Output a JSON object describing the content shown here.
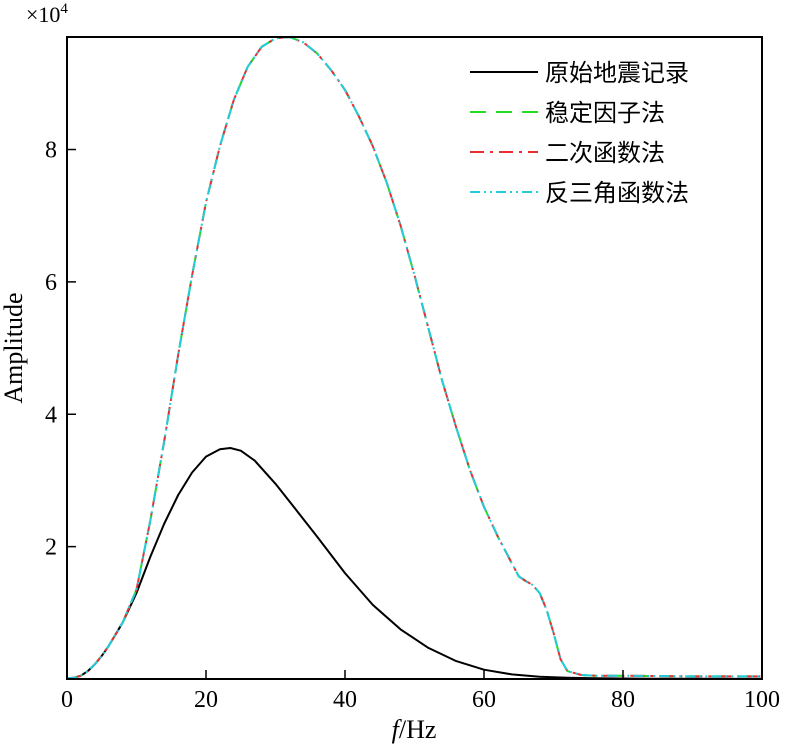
{
  "chart_data": {
    "type": "line",
    "title": "",
    "xlabel_italic": "f",
    "xlabel_rest": "/Hz",
    "ylabel": "Amplitude",
    "y_multiplier": "×10",
    "y_multiplier_exp": "4",
    "xlim": [
      0,
      100
    ],
    "ylim": [
      0,
      9.7
    ],
    "xticks": [
      0,
      20,
      40,
      60,
      80,
      100
    ],
    "yticks": [
      2,
      4,
      6,
      8
    ],
    "legend_position": "top-right",
    "grid": false,
    "series": [
      {
        "name": "原始地震记录",
        "color": "#000000",
        "dash": "solid",
        "x": [
          0,
          1,
          2,
          3,
          4,
          5,
          6,
          8,
          10,
          12,
          14,
          16,
          18,
          20,
          22,
          23.5,
          25,
          27,
          30,
          33,
          36,
          40,
          44,
          48,
          52,
          56,
          60,
          64,
          68,
          72,
          76,
          80,
          85,
          90,
          100
        ],
        "y": [
          0.01,
          0.02,
          0.05,
          0.12,
          0.22,
          0.35,
          0.5,
          0.85,
          1.3,
          1.85,
          2.35,
          2.78,
          3.12,
          3.36,
          3.47,
          3.49,
          3.45,
          3.3,
          2.95,
          2.55,
          2.15,
          1.6,
          1.12,
          0.75,
          0.47,
          0.27,
          0.14,
          0.07,
          0.035,
          0.02,
          0.012,
          0.008,
          0.005,
          0.003,
          0.002
        ]
      },
      {
        "name": "稳定因子法",
        "color": "#22dd22",
        "dash": "long-dash",
        "x": [
          0,
          1,
          2,
          3,
          4,
          5,
          6,
          8,
          10,
          12,
          14,
          16,
          18,
          20,
          22,
          24,
          26,
          28,
          30,
          32,
          34,
          36,
          38,
          40,
          42,
          44,
          46,
          48,
          50,
          52,
          54,
          56,
          58,
          60,
          62,
          64,
          65,
          66,
          67,
          68,
          69,
          70,
          71,
          72,
          74,
          76,
          80,
          90,
          100
        ],
        "y": [
          0.01,
          0.02,
          0.05,
          0.12,
          0.22,
          0.35,
          0.5,
          0.85,
          1.35,
          2.4,
          3.6,
          4.9,
          6.1,
          7.2,
          8.05,
          8.75,
          9.25,
          9.55,
          9.68,
          9.7,
          9.62,
          9.45,
          9.2,
          8.9,
          8.5,
          8.05,
          7.5,
          6.85,
          6.1,
          5.3,
          4.5,
          3.8,
          3.15,
          2.6,
          2.15,
          1.75,
          1.55,
          1.48,
          1.42,
          1.3,
          1.05,
          0.7,
          0.3,
          0.12,
          0.06,
          0.05,
          0.05,
          0.04,
          0.04
        ]
      },
      {
        "name": "二次函数法",
        "color": "#e83030",
        "dash": "dash-dot",
        "x": [
          0,
          1,
          2,
          3,
          4,
          5,
          6,
          8,
          10,
          12,
          14,
          16,
          18,
          20,
          22,
          24,
          26,
          28,
          30,
          32,
          34,
          36,
          38,
          40,
          42,
          44,
          46,
          48,
          50,
          52,
          54,
          56,
          58,
          60,
          62,
          64,
          65,
          66,
          67,
          68,
          69,
          70,
          71,
          72,
          74,
          76,
          80,
          90,
          100
        ],
        "y": [
          0.01,
          0.02,
          0.05,
          0.12,
          0.22,
          0.35,
          0.5,
          0.85,
          1.35,
          2.4,
          3.6,
          4.9,
          6.1,
          7.2,
          8.05,
          8.75,
          9.25,
          9.55,
          9.68,
          9.7,
          9.62,
          9.45,
          9.2,
          8.9,
          8.5,
          8.05,
          7.5,
          6.85,
          6.1,
          5.3,
          4.5,
          3.8,
          3.15,
          2.6,
          2.15,
          1.75,
          1.55,
          1.48,
          1.42,
          1.3,
          1.05,
          0.7,
          0.3,
          0.12,
          0.06,
          0.05,
          0.05,
          0.04,
          0.04
        ]
      },
      {
        "name": "反三角函数法",
        "color": "#22ccdd",
        "dash": "dash-dot-dot",
        "x": [
          0,
          1,
          2,
          3,
          4,
          5,
          6,
          8,
          10,
          12,
          14,
          16,
          18,
          20,
          22,
          24,
          26,
          28,
          30,
          32,
          34,
          36,
          38,
          40,
          42,
          44,
          46,
          48,
          50,
          52,
          54,
          56,
          58,
          60,
          62,
          64,
          65,
          66,
          67,
          68,
          69,
          70,
          71,
          72,
          74,
          76,
          80,
          90,
          100
        ],
        "y": [
          0.01,
          0.02,
          0.05,
          0.12,
          0.22,
          0.35,
          0.5,
          0.85,
          1.35,
          2.4,
          3.6,
          4.9,
          6.1,
          7.2,
          8.05,
          8.75,
          9.25,
          9.55,
          9.68,
          9.7,
          9.62,
          9.45,
          9.2,
          8.9,
          8.5,
          8.05,
          7.5,
          6.85,
          6.1,
          5.3,
          4.5,
          3.8,
          3.15,
          2.6,
          2.15,
          1.75,
          1.55,
          1.48,
          1.42,
          1.3,
          1.05,
          0.7,
          0.3,
          0.12,
          0.06,
          0.05,
          0.05,
          0.04,
          0.04
        ]
      }
    ]
  }
}
